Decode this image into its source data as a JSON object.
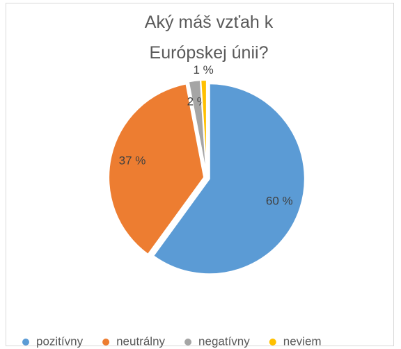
{
  "chart_data": {
    "type": "pie",
    "title": "Aký máš vzťah k Európskej únii?",
    "categories": [
      "pozitívny",
      "neutrálny",
      "negatívny",
      "neviem"
    ],
    "values": [
      60,
      37,
      2,
      1
    ],
    "value_labels": [
      "60 %",
      "37 %",
      "2 %",
      "1 %"
    ],
    "colors": [
      "#5b9bd5",
      "#ed7d31",
      "#a5a5a5",
      "#ffc000"
    ],
    "legend": "bottom"
  }
}
